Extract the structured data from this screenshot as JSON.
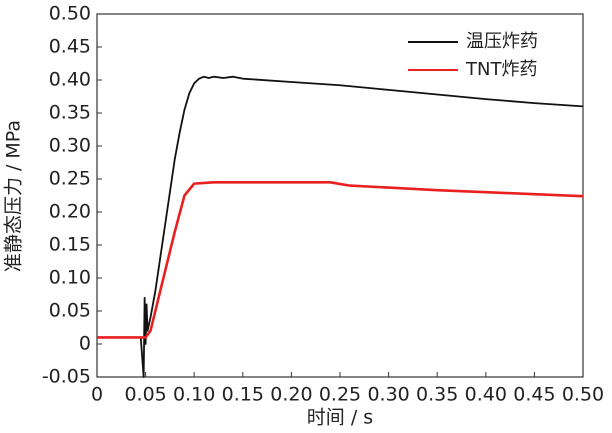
{
  "chart_data": {
    "type": "line",
    "xlabel": "时间 / s",
    "ylabel": "准静态压力 / MPa",
    "xlim": [
      0,
      0.5
    ],
    "ylim": [
      -0.05,
      0.5
    ],
    "xticks": [
      0,
      0.05,
      {
        "value": 0.1,
        "label": "0.10"
      },
      0.15,
      {
        "value": 0.2,
        "label": "0.20"
      },
      0.25,
      {
        "value": 0.3,
        "label": "0.30"
      },
      0.35,
      {
        "value": 0.4,
        "label": "0.40"
      },
      0.45,
      {
        "value": 0.5,
        "label": "0.50"
      }
    ],
    "yticks": [
      -0.05,
      0,
      0.05,
      {
        "value": 0.1,
        "label": "0.10"
      },
      0.15,
      {
        "value": 0.2,
        "label": "0.20"
      },
      0.25,
      {
        "value": 0.3,
        "label": "0.30"
      },
      0.35,
      {
        "value": 0.4,
        "label": "0.40"
      },
      0.45,
      {
        "value": 0.5,
        "label": "0.50"
      }
    ],
    "legend": "upper right",
    "series": [
      {
        "name": "温压炸药",
        "color": "#111111",
        "x": [
          0,
          0.02,
          0.045,
          0.048,
          0.049,
          0.05,
          0.051,
          0.052,
          0.055,
          0.06,
          0.065,
          0.07,
          0.075,
          0.08,
          0.085,
          0.09,
          0.095,
          0.1,
          0.105,
          0.11,
          0.115,
          0.12,
          0.13,
          0.14,
          0.15,
          0.2,
          0.25,
          0.3,
          0.35,
          0.4,
          0.45,
          0.5
        ],
        "values": [
          0.01,
          0.01,
          0.01,
          -0.05,
          0.07,
          0.0,
          0.06,
          0.02,
          0.04,
          0.08,
          0.13,
          0.18,
          0.23,
          0.28,
          0.32,
          0.355,
          0.38,
          0.395,
          0.402,
          0.405,
          0.403,
          0.405,
          0.403,
          0.405,
          0.402,
          0.397,
          0.392,
          0.385,
          0.378,
          0.371,
          0.365,
          0.36
        ]
      },
      {
        "name": "TNT炸药",
        "color": "#e8201f",
        "x": [
          0,
          0.05,
          0.055,
          0.06,
          0.07,
          0.08,
          0.09,
          0.1,
          0.12,
          0.15,
          0.2,
          0.24,
          0.26,
          0.3,
          0.35,
          0.4,
          0.45,
          0.5
        ],
        "values": [
          0.01,
          0.01,
          0.02,
          0.05,
          0.11,
          0.17,
          0.225,
          0.243,
          0.245,
          0.245,
          0.245,
          0.245,
          0.24,
          0.237,
          0.233,
          0.23,
          0.227,
          0.224
        ]
      }
    ]
  }
}
